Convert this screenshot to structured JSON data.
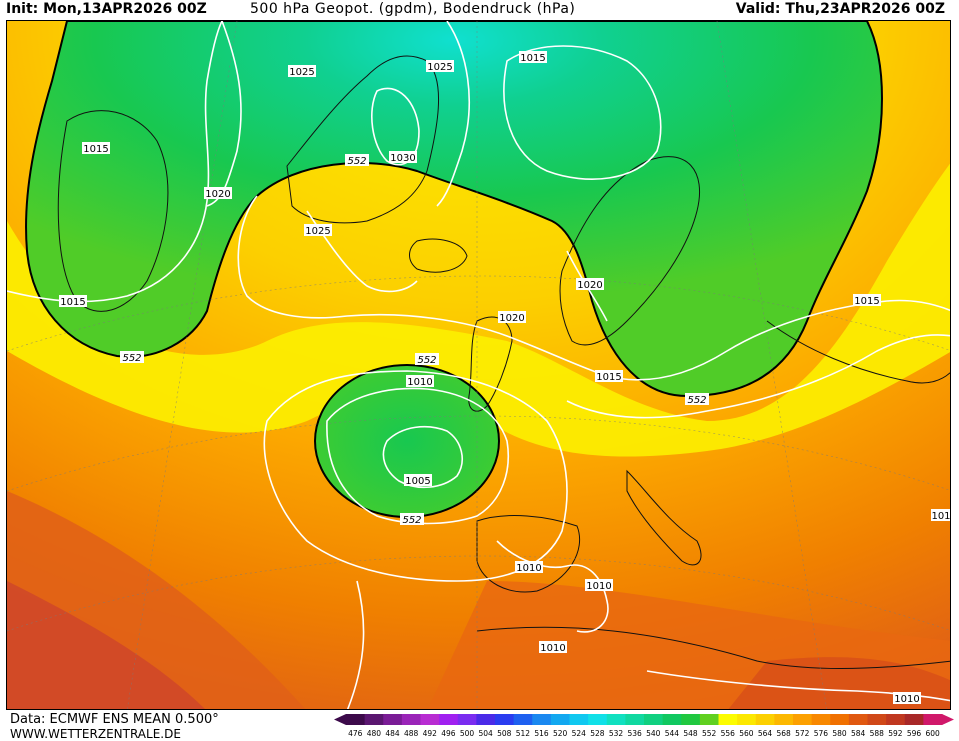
{
  "header": {
    "init": "Init: Mon,13APR2026 00Z",
    "title": "500 hPa Geopot. (gpdm), Bodendruck (hPa)",
    "valid": "Valid: Thu,23APR2026 00Z"
  },
  "footer": {
    "source": "Data: ECMWF ENS MEAN 0.500°",
    "website": "WWW.WETTERZENTRALE.DE"
  },
  "legend": {
    "values": [
      "476",
      "480",
      "484",
      "488",
      "492",
      "496",
      "500",
      "504",
      "508",
      "512",
      "516",
      "520",
      "524",
      "528",
      "532",
      "536",
      "540",
      "544",
      "548",
      "552",
      "556",
      "560",
      "564",
      "568",
      "572",
      "576",
      "580",
      "584",
      "588",
      "592",
      "596",
      "600"
    ],
    "colors": [
      "#3c0a4a",
      "#5a1670",
      "#7a1c96",
      "#9a24b8",
      "#b82cd2",
      "#a020f0",
      "#7a2cf0",
      "#4a2ae8",
      "#2a3cf0",
      "#1e60f0",
      "#1a88f0",
      "#12a8f0",
      "#10c8f0",
      "#10e0e8",
      "#10e0c0",
      "#10d8a0",
      "#10d080",
      "#10c860",
      "#20c840",
      "#60d020",
      "#fcfc00",
      "#fce800",
      "#fcd000",
      "#fcb800",
      "#fca000",
      "#f88800",
      "#f07000",
      "#e05810",
      "#d04818",
      "#c03820",
      "#a82828",
      "#d0186a"
    ]
  },
  "map": {
    "geopotential_labels": [
      {
        "text": "552"
      },
      {
        "text": "552"
      },
      {
        "text": "552"
      },
      {
        "text": "552"
      },
      {
        "text": "552"
      }
    ],
    "pressure_labels": [
      {
        "text": "1025"
      },
      {
        "text": "1025"
      },
      {
        "text": "1015"
      },
      {
        "text": "1030"
      },
      {
        "text": "1015"
      },
      {
        "text": "1020"
      },
      {
        "text": "1025"
      },
      {
        "text": "1015"
      },
      {
        "text": "1020"
      },
      {
        "text": "1020"
      },
      {
        "text": "1015"
      },
      {
        "text": "1015"
      },
      {
        "text": "1010"
      },
      {
        "text": "1005"
      },
      {
        "text": "1010"
      },
      {
        "text": "1010"
      },
      {
        "text": "1010"
      },
      {
        "text": "1010"
      },
      {
        "text": "101"
      }
    ]
  }
}
